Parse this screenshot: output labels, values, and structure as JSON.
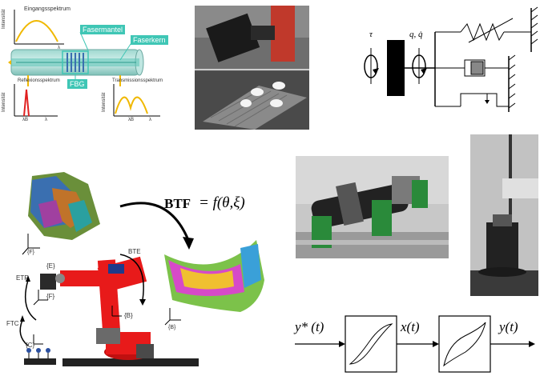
{
  "fbg_panel": {
    "input_spectrum": "Eingangsspektrum",
    "intensity": "Intensität",
    "lambda": "λ",
    "fiber_cladding": "Fasermantel",
    "fiber_core": "Faserkern",
    "fbg": "FBG",
    "reflection_spectrum": "Reflexionsspektrum",
    "transmission_spectrum": "Transmissionsspektrum",
    "lambda_b": "λB",
    "colors": {
      "teal": "#3fc6b5",
      "spectrum_yellow": "#f0b800",
      "reflection_red": "#e02020"
    }
  },
  "dynamics_panel": {
    "tau": "τ",
    "q": "q, q̇"
  },
  "robot_panel": {
    "transform_equation_lhs": "BTF",
    "transform_equation_rhs": "= f(θ,ξ)",
    "frame_F": "{F}",
    "frame_B": "{B}",
    "frame_E": "{E}",
    "frame_C": "{C}",
    "label_ETF": "ETF",
    "label_FTC": "FTC",
    "label_BTE": "BTE",
    "colors": {
      "robot_red": "#e81a1a"
    }
  },
  "hysteresis_panel": {
    "input": "y* (t)",
    "middle": "x(t)",
    "output": "y(t)"
  }
}
